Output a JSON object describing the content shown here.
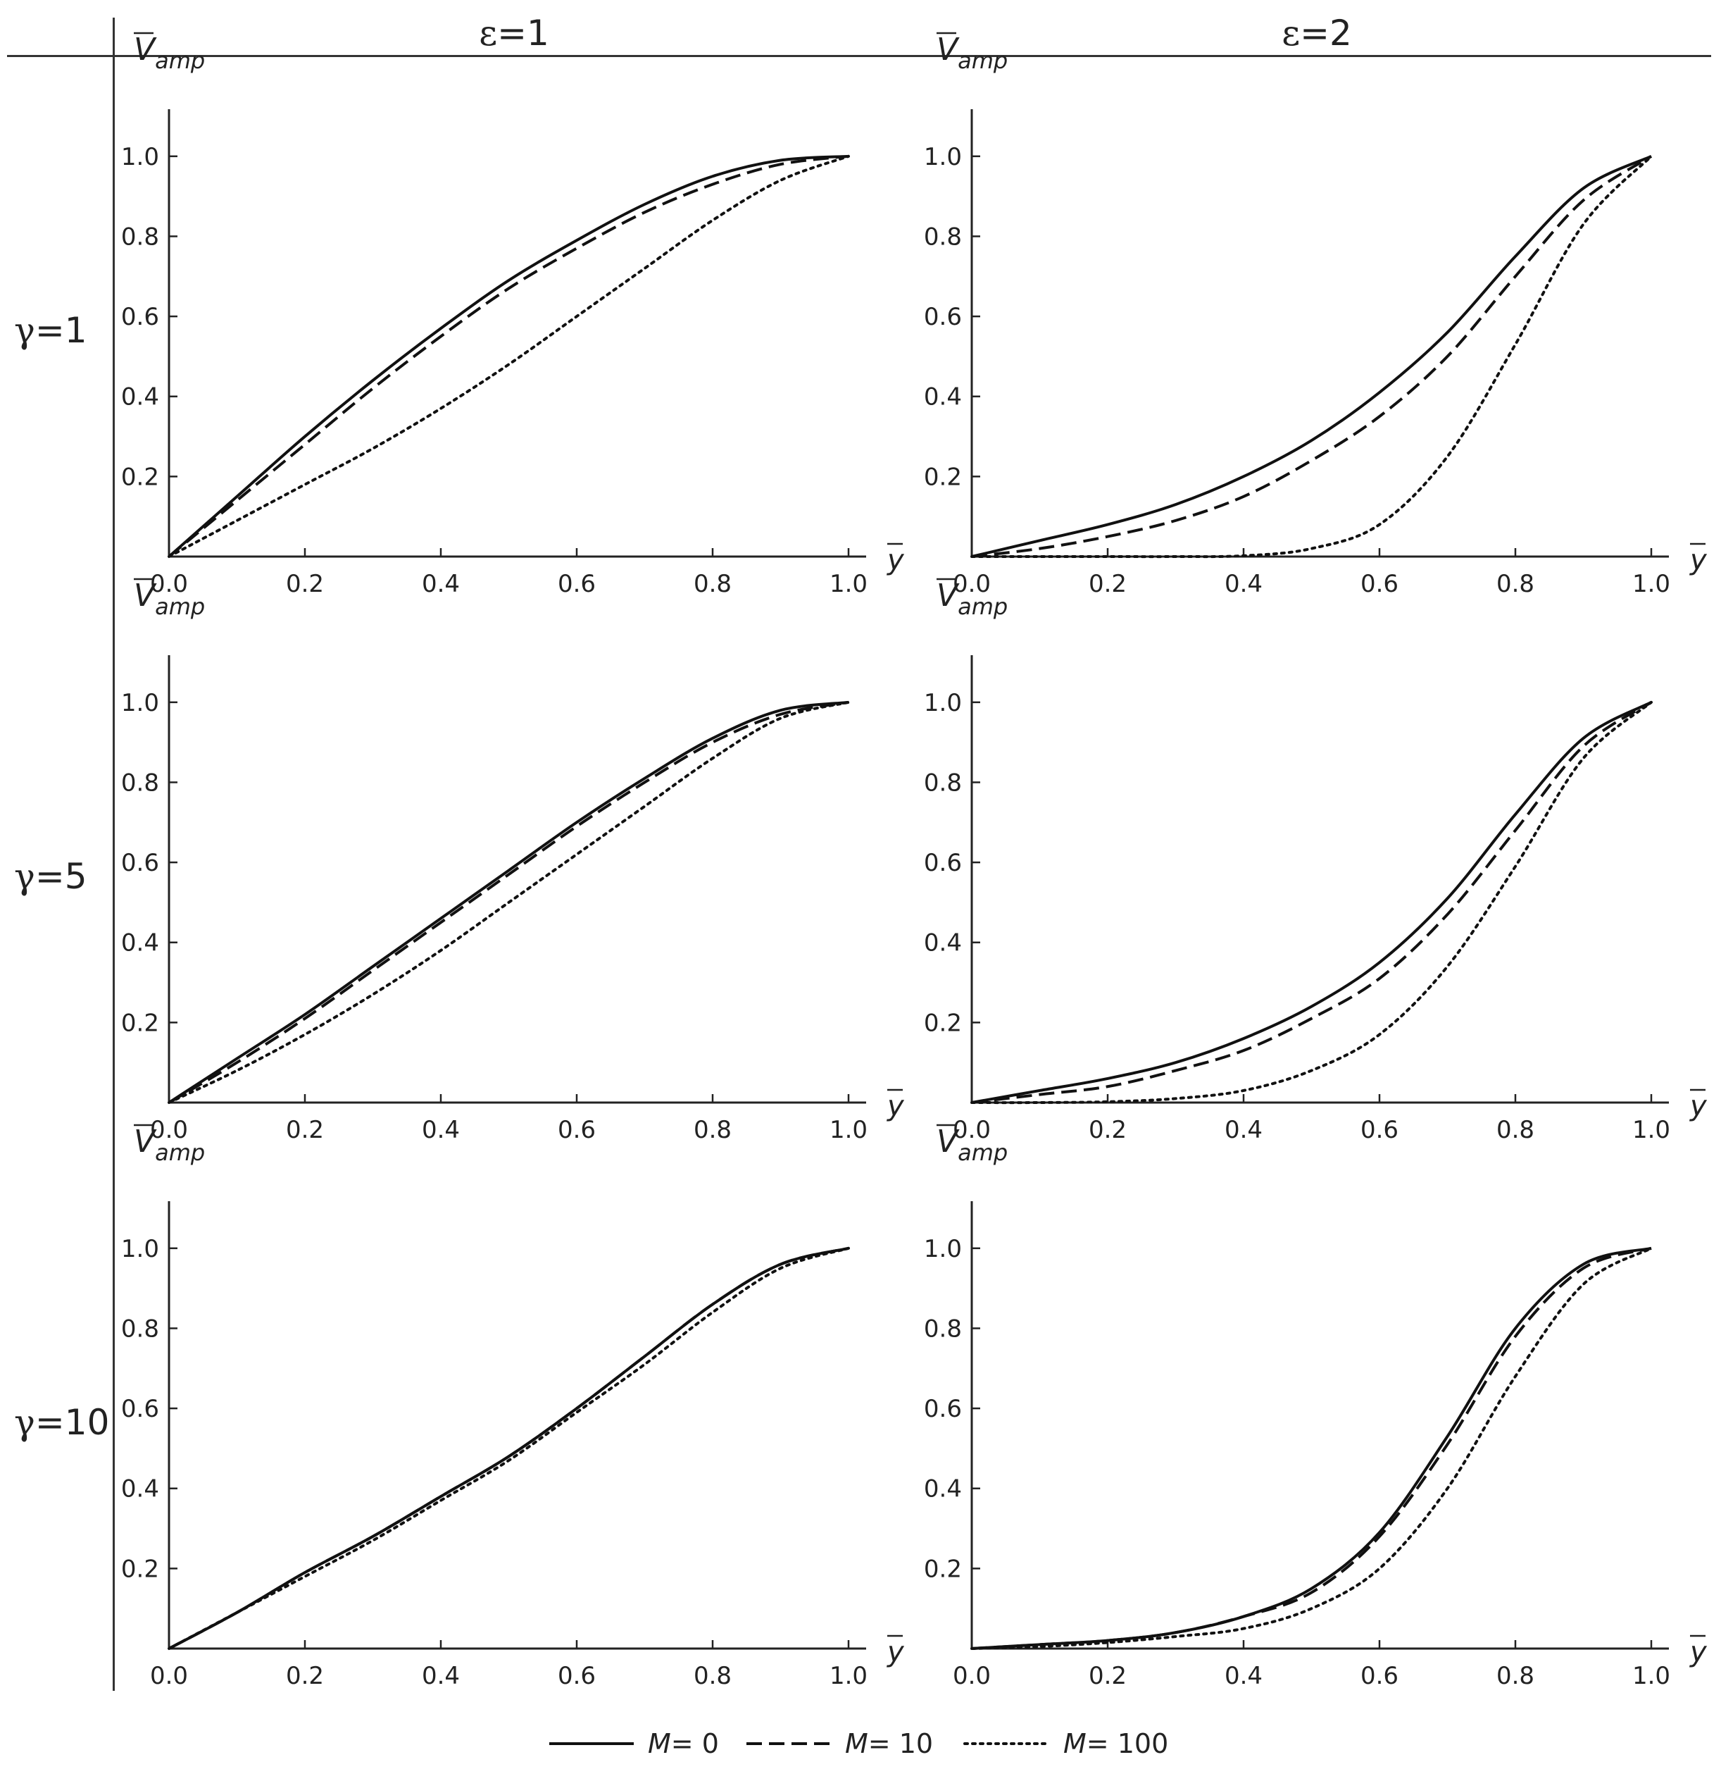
{
  "header": {
    "columns": [
      {
        "symbol": "ε",
        "value": "1"
      },
      {
        "symbol": "ε",
        "value": "2"
      }
    ],
    "rows": [
      {
        "symbol": "γ",
        "value": "1"
      },
      {
        "symbol": "γ",
        "value": "5"
      },
      {
        "symbol": "γ",
        "value": "10"
      }
    ]
  },
  "axes": {
    "xlabel": "y",
    "ylabel": "V",
    "ylabel_sub": "amp",
    "xticks": [
      "0.0",
      "0.2",
      "0.4",
      "0.6",
      "0.8",
      "1.0"
    ],
    "yticks": [
      "0.2",
      "0.4",
      "0.6",
      "0.8",
      "1.0"
    ]
  },
  "legend": [
    {
      "label_var": "M",
      "label_value": "= 0",
      "style": "solid"
    },
    {
      "label_var": "M",
      "label_value": "= 10",
      "style": "dashed"
    },
    {
      "label_var": "M",
      "label_value": "= 100",
      "style": "dotted"
    }
  ],
  "chart_data": [
    {
      "type": "line",
      "panel": "γ=1, ε=1",
      "xlim": [
        0,
        1
      ],
      "ylim": [
        0,
        1.1
      ],
      "x": [
        0,
        0.1,
        0.2,
        0.3,
        0.4,
        0.5,
        0.6,
        0.7,
        0.8,
        0.9,
        1.0
      ],
      "series": [
        {
          "name": "M= 0",
          "values": [
            0,
            0.15,
            0.3,
            0.44,
            0.57,
            0.69,
            0.79,
            0.88,
            0.95,
            0.99,
            1.0
          ]
        },
        {
          "name": "M= 10",
          "values": [
            0,
            0.14,
            0.28,
            0.42,
            0.55,
            0.67,
            0.77,
            0.86,
            0.93,
            0.98,
            1.0
          ]
        },
        {
          "name": "M= 100",
          "values": [
            0,
            0.09,
            0.18,
            0.27,
            0.37,
            0.48,
            0.6,
            0.72,
            0.84,
            0.94,
            1.0
          ]
        }
      ]
    },
    {
      "type": "line",
      "panel": "γ=1, ε=2",
      "xlim": [
        0,
        1
      ],
      "ylim": [
        0,
        1.1
      ],
      "x": [
        0,
        0.1,
        0.2,
        0.3,
        0.4,
        0.5,
        0.6,
        0.7,
        0.8,
        0.9,
        1.0
      ],
      "series": [
        {
          "name": "M= 0",
          "values": [
            0,
            0.04,
            0.08,
            0.13,
            0.2,
            0.29,
            0.41,
            0.56,
            0.75,
            0.92,
            1.0
          ]
        },
        {
          "name": "M= 10",
          "values": [
            0,
            0.02,
            0.05,
            0.09,
            0.15,
            0.24,
            0.35,
            0.5,
            0.7,
            0.89,
            1.0
          ]
        },
        {
          "name": "M= 100",
          "values": [
            0,
            0,
            0,
            0,
            0.002,
            0.02,
            0.08,
            0.25,
            0.53,
            0.83,
            1.0
          ]
        }
      ]
    },
    {
      "type": "line",
      "panel": "γ=5, ε=1",
      "xlim": [
        0,
        1
      ],
      "ylim": [
        0,
        1.1
      ],
      "x": [
        0,
        0.1,
        0.2,
        0.3,
        0.4,
        0.5,
        0.6,
        0.7,
        0.8,
        0.9,
        1.0
      ],
      "series": [
        {
          "name": "M= 0",
          "values": [
            0,
            0.11,
            0.22,
            0.34,
            0.46,
            0.58,
            0.7,
            0.81,
            0.91,
            0.98,
            1.0
          ]
        },
        {
          "name": "M= 10",
          "values": [
            0,
            0.1,
            0.21,
            0.33,
            0.45,
            0.57,
            0.69,
            0.8,
            0.9,
            0.97,
            1.0
          ]
        },
        {
          "name": "M= 100",
          "values": [
            0,
            0.08,
            0.17,
            0.27,
            0.38,
            0.5,
            0.62,
            0.74,
            0.86,
            0.96,
            1.0
          ]
        }
      ]
    },
    {
      "type": "line",
      "panel": "γ=5, ε=2",
      "xlim": [
        0,
        1
      ],
      "ylim": [
        0,
        1.1
      ],
      "x": [
        0,
        0.1,
        0.2,
        0.3,
        0.4,
        0.5,
        0.6,
        0.7,
        0.8,
        0.9,
        1.0
      ],
      "series": [
        {
          "name": "M= 0",
          "values": [
            0,
            0.03,
            0.06,
            0.1,
            0.16,
            0.24,
            0.35,
            0.51,
            0.72,
            0.91,
            1.0
          ]
        },
        {
          "name": "M= 10",
          "values": [
            0,
            0.02,
            0.04,
            0.08,
            0.13,
            0.21,
            0.31,
            0.47,
            0.68,
            0.89,
            1.0
          ]
        },
        {
          "name": "M= 100",
          "values": [
            0,
            0,
            0.002,
            0.01,
            0.03,
            0.08,
            0.17,
            0.34,
            0.59,
            0.86,
            1.0
          ]
        }
      ]
    },
    {
      "type": "line",
      "panel": "γ=10, ε=1",
      "xlim": [
        0,
        1
      ],
      "ylim": [
        0,
        1.1
      ],
      "x": [
        0,
        0.1,
        0.2,
        0.3,
        0.4,
        0.5,
        0.6,
        0.7,
        0.8,
        0.9,
        1.0
      ],
      "series": [
        {
          "name": "M= 0",
          "values": [
            0,
            0.09,
            0.19,
            0.28,
            0.38,
            0.48,
            0.6,
            0.73,
            0.86,
            0.96,
            1.0
          ]
        },
        {
          "name": "M= 10",
          "values": [
            0,
            0.09,
            0.19,
            0.28,
            0.38,
            0.48,
            0.6,
            0.73,
            0.86,
            0.96,
            1.0
          ]
        },
        {
          "name": "M= 100",
          "values": [
            0,
            0.09,
            0.18,
            0.27,
            0.37,
            0.47,
            0.59,
            0.71,
            0.84,
            0.95,
            1.0
          ]
        }
      ]
    },
    {
      "type": "line",
      "panel": "γ=10, ε=2",
      "xlim": [
        0,
        1
      ],
      "ylim": [
        0,
        1.1
      ],
      "x": [
        0,
        0.1,
        0.2,
        0.3,
        0.4,
        0.5,
        0.6,
        0.7,
        0.8,
        0.9,
        1.0
      ],
      "series": [
        {
          "name": "M= 0",
          "values": [
            0,
            0.01,
            0.02,
            0.04,
            0.08,
            0.15,
            0.29,
            0.53,
            0.8,
            0.96,
            1.0
          ]
        },
        {
          "name": "M= 10",
          "values": [
            0,
            0.01,
            0.02,
            0.04,
            0.08,
            0.14,
            0.28,
            0.51,
            0.78,
            0.95,
            1.0
          ]
        },
        {
          "name": "M= 100",
          "values": [
            0,
            0.005,
            0.015,
            0.03,
            0.05,
            0.1,
            0.2,
            0.4,
            0.68,
            0.91,
            1.0
          ]
        }
      ]
    }
  ]
}
